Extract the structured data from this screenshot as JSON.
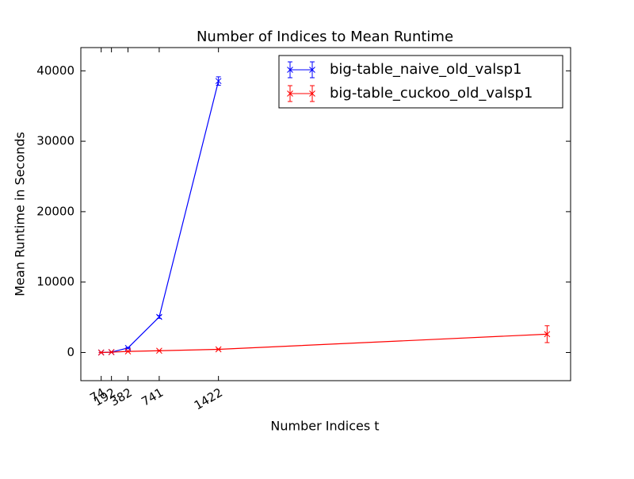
{
  "chart_data": {
    "type": "errorbar-line",
    "title": "Number of Indices to Mean Runtime",
    "xlabel": "Number Indices t",
    "ylabel": "Mean Runtime in Seconds",
    "xlim": [
      -160,
      5470
    ],
    "ylim": [
      -4000,
      43300
    ],
    "xticks": [
      74,
      192,
      382,
      741,
      1422
    ],
    "yticks": [
      0,
      10000,
      20000,
      30000,
      40000
    ],
    "legend": "upper right",
    "series": [
      {
        "name": "big-table_naive_old_valsp1",
        "color": "#0000ff",
        "x": [
          74,
          192,
          382,
          741,
          1422
        ],
        "values": [
          0,
          50,
          650,
          5050,
          38550
        ],
        "errors": [
          20,
          20,
          50,
          200,
          600
        ]
      },
      {
        "name": "big-table_cuckoo_old_valsp1",
        "color": "#ff0000",
        "x": [
          74,
          192,
          382,
          741,
          1422,
          5200
        ],
        "values": [
          0,
          50,
          150,
          250,
          450,
          2600
        ],
        "errors": [
          10,
          10,
          20,
          30,
          50,
          1200
        ]
      }
    ]
  }
}
